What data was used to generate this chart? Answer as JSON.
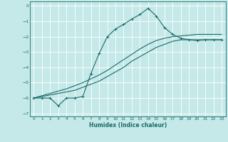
{
  "xlabel": "Humidex (Indice chaleur)",
  "background_color": "#c5e8e8",
  "grid_color": "#ffffff",
  "line_color": "#1a6b6b",
  "xlim": [
    -0.5,
    23.5
  ],
  "ylim": [
    -7.2,
    0.3
  ],
  "xticks": [
    0,
    1,
    2,
    3,
    4,
    5,
    6,
    7,
    8,
    9,
    10,
    11,
    12,
    13,
    14,
    15,
    16,
    17,
    18,
    19,
    20,
    21,
    22,
    23
  ],
  "yticks": [
    0,
    -1,
    -2,
    -3,
    -4,
    -5,
    -6,
    -7
  ],
  "series": [
    {
      "x": [
        0,
        1,
        2,
        3,
        4,
        5,
        6,
        7,
        8,
        9,
        10,
        11,
        12,
        13,
        14,
        15,
        16,
        17,
        18,
        19,
        20,
        21,
        22,
        23
      ],
      "y": [
        -6.0,
        -5.9,
        -5.8,
        -5.7,
        -5.6,
        -5.5,
        -5.3,
        -5.1,
        -4.9,
        -4.6,
        -4.3,
        -4.0,
        -3.6,
        -3.3,
        -3.0,
        -2.7,
        -2.5,
        -2.3,
        -2.2,
        -2.2,
        -2.2,
        -2.2,
        -2.2,
        -2.2
      ],
      "marker": null,
      "linewidth": 0.8
    },
    {
      "x": [
        0,
        1,
        2,
        3,
        4,
        5,
        6,
        7,
        8,
        9,
        10,
        11,
        12,
        13,
        14,
        15,
        16,
        17,
        18,
        19,
        20,
        21,
        22,
        23
      ],
      "y": [
        -6.0,
        -5.85,
        -5.7,
        -5.55,
        -5.4,
        -5.2,
        -5.0,
        -4.75,
        -4.5,
        -4.2,
        -3.85,
        -3.5,
        -3.15,
        -2.8,
        -2.5,
        -2.25,
        -2.1,
        -2.0,
        -1.95,
        -1.9,
        -1.85,
        -1.85,
        -1.85,
        -1.85
      ],
      "marker": null,
      "linewidth": 0.8
    },
    {
      "x": [
        0,
        1,
        2,
        3,
        4,
        5,
        6,
        7,
        8,
        9,
        10,
        11,
        12,
        13,
        14,
        15,
        16,
        17,
        18,
        19,
        20,
        21,
        22,
        23
      ],
      "y": [
        -6.0,
        -6.0,
        -6.0,
        -6.5,
        -6.0,
        -6.0,
        -5.9,
        -4.4,
        -3.1,
        -2.0,
        -1.5,
        -1.2,
        -0.85,
        -0.55,
        -0.15,
        -0.65,
        -1.4,
        -1.85,
        -2.1,
        -2.2,
        -2.25,
        -2.2,
        -2.2,
        -2.2
      ],
      "marker": "+",
      "linewidth": 0.8
    }
  ]
}
